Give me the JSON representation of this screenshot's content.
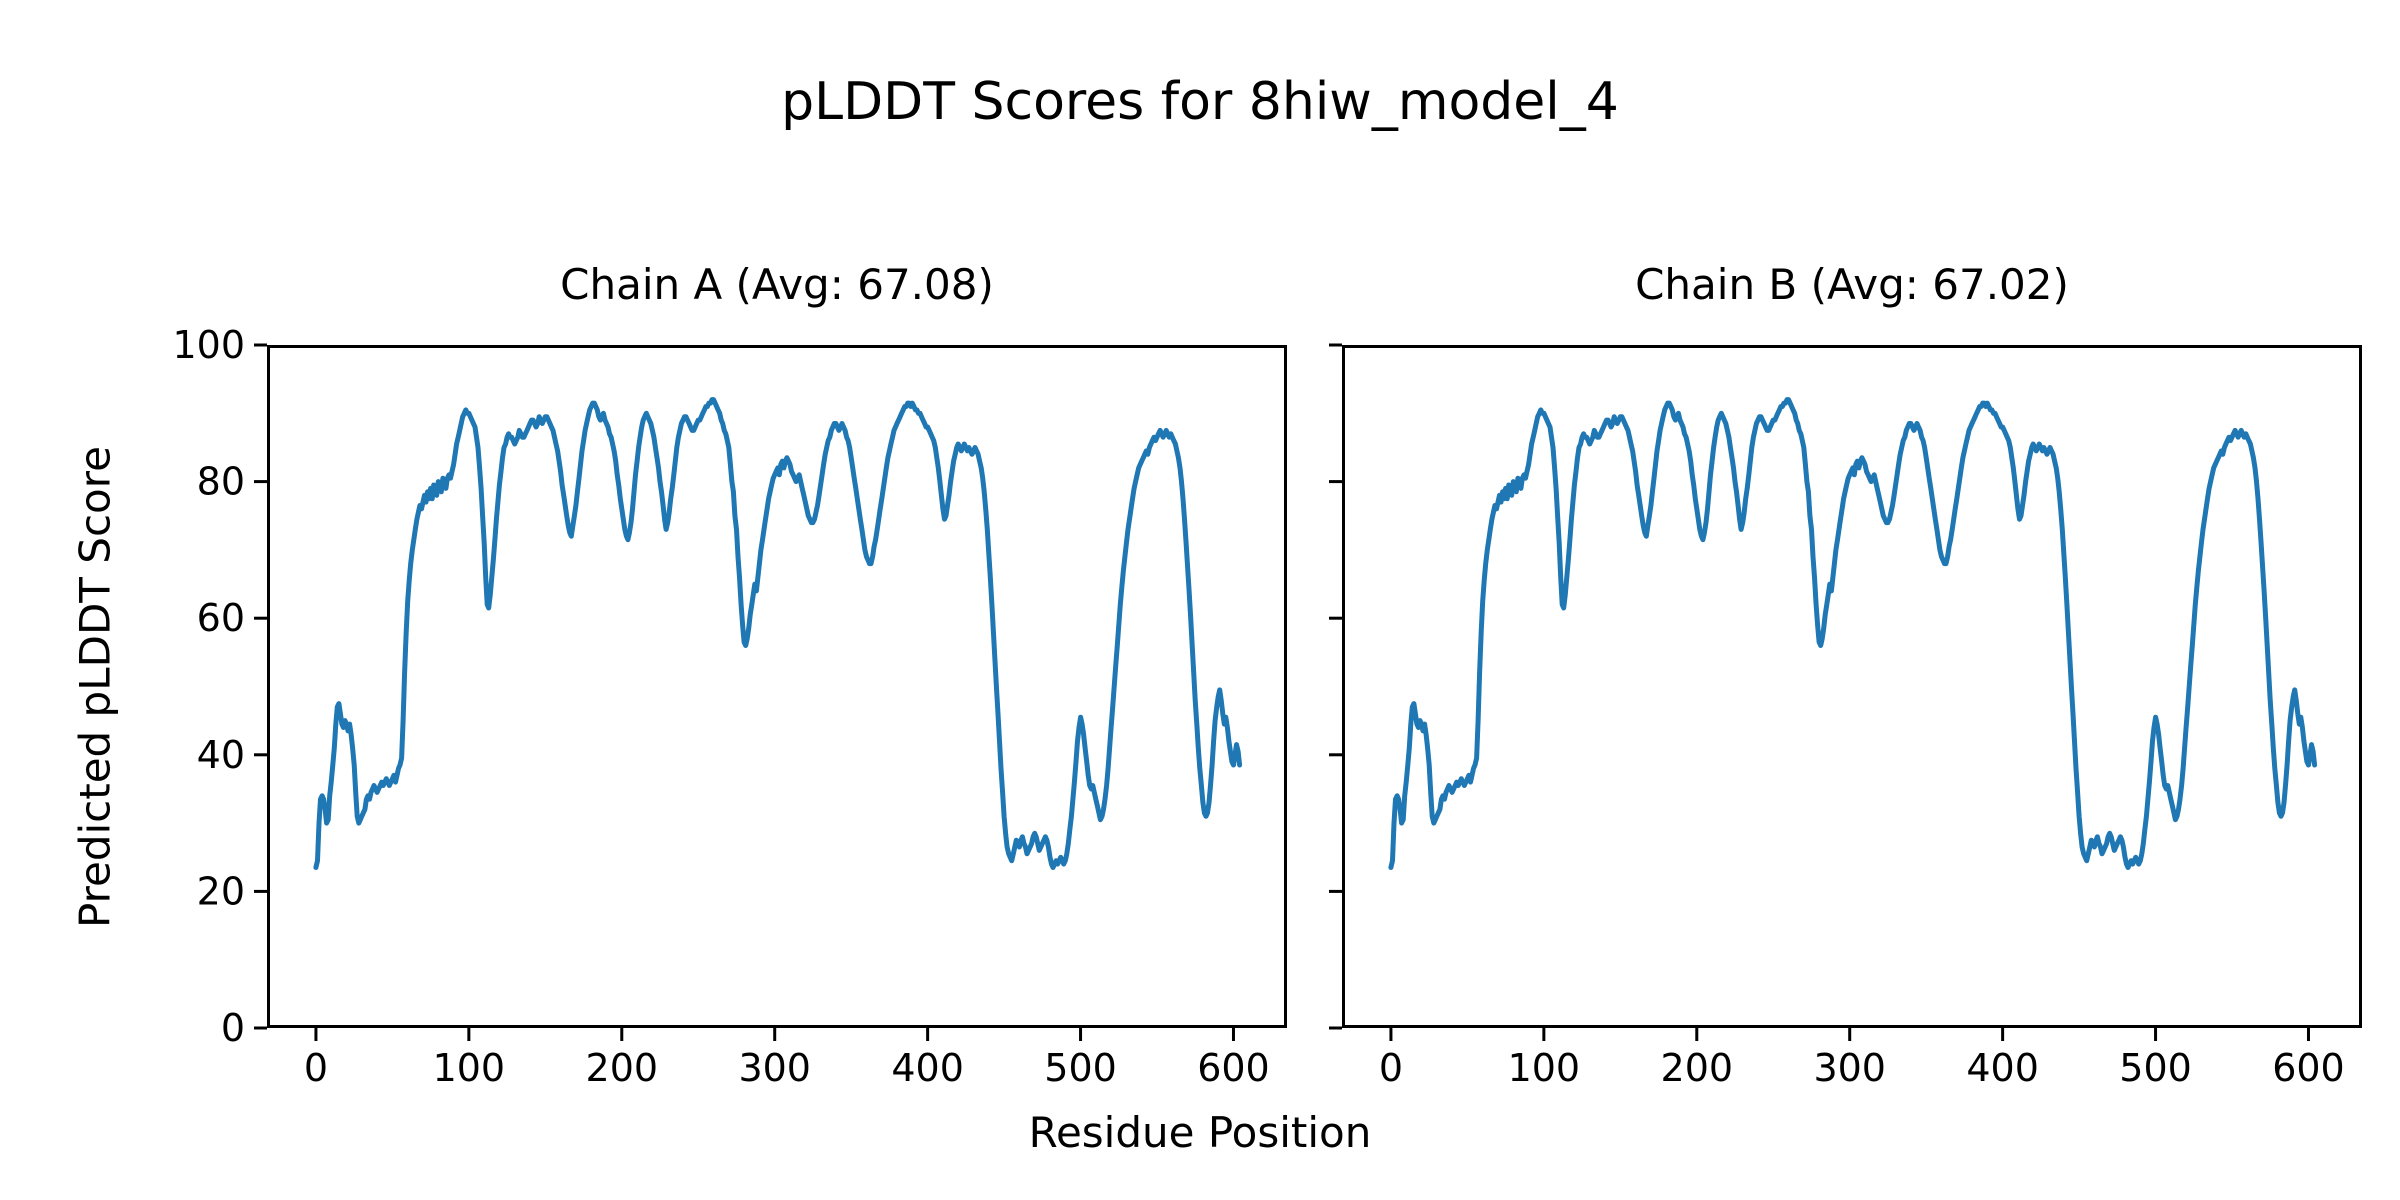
{
  "figure": {
    "suptitle": "pLDDT Scores for 8hiw_model_4",
    "background": "#ffffff",
    "text_color": "#000000",
    "line_color": "#1f77b4"
  },
  "axis": {
    "xlabel": "Residue Position",
    "ylabel": "Predicted pLDDT Score",
    "x_ticks": [
      0,
      100,
      200,
      300,
      400,
      500,
      600
    ],
    "y_ticks": [
      0,
      20,
      40,
      60,
      80,
      100
    ]
  },
  "chart_data": {
    "type": "line",
    "title": "pLDDT Scores for 8hiw_model_4",
    "xlabel": "Residue Position",
    "ylabel": "Predicted pLDDT Score",
    "grid": false,
    "legend_position": "none",
    "xlim": [
      -32,
      635
    ],
    "ylim": [
      0,
      100
    ],
    "x_ticks": [
      0,
      100,
      200,
      300,
      400,
      500,
      600
    ],
    "y_ticks": [
      0,
      20,
      40,
      60,
      80,
      100
    ],
    "x_start": 0,
    "x_step": 1,
    "subplots": [
      {
        "name": "Chain A",
        "title": "Chain A (Avg: 67.08)",
        "avg": 67.08,
        "y": [
          23.5,
          24.5,
          30,
          33.5,
          34,
          33.5,
          32,
          30,
          30.5,
          34,
          36,
          38.5,
          41,
          44.5,
          47,
          47.5,
          46,
          44.5,
          44,
          45,
          44.5,
          43.5,
          44.5,
          43,
          41,
          38.5,
          34.5,
          31,
          30,
          30.5,
          31,
          31.5,
          32,
          33.5,
          34,
          33.5,
          34.5,
          35,
          35.5,
          35,
          34.5,
          35,
          35.5,
          36,
          35.5,
          36,
          36.5,
          36,
          35.5,
          36,
          36.5,
          37,
          36,
          37,
          38,
          38.5,
          39.5,
          45,
          52,
          58,
          62.5,
          65.5,
          68,
          70,
          71.5,
          73,
          74.5,
          75.5,
          76.5,
          76,
          77,
          78,
          77,
          78.5,
          77.5,
          79,
          77.5,
          79.5,
          78.5,
          78,
          80,
          79,
          78.5,
          80.5,
          79.5,
          79,
          80.5,
          81,
          80.5,
          81.5,
          82.5,
          84,
          85.5,
          86.5,
          87.5,
          88.5,
          89.5,
          90,
          90.5,
          90,
          90,
          89.5,
          89,
          88.5,
          88,
          86.5,
          85,
          82,
          79,
          75,
          71,
          66,
          62,
          61.5,
          63.5,
          66,
          68.5,
          71.5,
          74.5,
          77,
          79.5,
          81.5,
          83.5,
          85,
          85.5,
          86.5,
          87,
          86.5,
          86.5,
          86,
          85.5,
          86,
          86.5,
          87.5,
          87,
          86.5,
          86.5,
          87,
          87.5,
          88,
          88.5,
          89,
          89,
          88.5,
          88,
          88.5,
          89.5,
          89,
          88.5,
          89,
          89.5,
          89.5,
          89,
          88.5,
          88,
          87.5,
          86.5,
          85.5,
          84.5,
          83,
          81.5,
          79.5,
          78,
          76.5,
          75,
          73.5,
          72.5,
          72,
          73.5,
          75,
          76.5,
          78.5,
          80.5,
          82.5,
          84.5,
          86,
          87.5,
          88.5,
          89.5,
          90.5,
          91,
          91.5,
          91.5,
          91,
          90.5,
          89.5,
          89,
          89.5,
          90,
          89,
          88.5,
          88,
          87,
          86.5,
          85.5,
          84.5,
          83,
          81,
          79.5,
          77.5,
          76,
          74.5,
          73,
          72,
          71.5,
          72.5,
          74,
          76,
          78.5,
          81,
          83,
          85,
          86.5,
          88,
          89,
          89.5,
          90,
          89.5,
          89,
          88.5,
          87.5,
          86.5,
          85,
          83.5,
          82,
          80,
          78.5,
          76.5,
          74.5,
          73,
          74,
          75.5,
          77.5,
          79,
          81,
          83,
          85,
          86.5,
          87.5,
          88.5,
          89,
          89.5,
          89.5,
          89,
          88.5,
          88,
          87.5,
          87.5,
          88,
          88.5,
          89,
          89,
          89.5,
          90,
          90.5,
          91,
          91,
          91.5,
          91.5,
          92,
          92,
          91.5,
          91,
          90.5,
          90,
          89,
          88.5,
          87.5,
          87,
          86,
          85,
          82.5,
          80,
          78.5,
          75,
          73,
          69,
          66,
          62,
          59,
          56.5,
          56,
          57,
          58.5,
          60.5,
          62,
          63.5,
          65,
          64,
          66,
          68,
          70,
          71.5,
          73,
          74.5,
          76,
          77.5,
          78.5,
          79.5,
          80.5,
          81,
          81.5,
          82,
          81,
          82.5,
          83,
          82,
          83,
          83.5,
          83,
          82.5,
          81.5,
          81,
          80.5,
          80,
          80.5,
          81,
          80,
          79,
          78,
          77,
          76,
          75,
          74.5,
          74,
          74,
          74.5,
          75.5,
          76.5,
          78,
          79.5,
          81,
          82.5,
          84,
          85,
          86,
          86.5,
          87.5,
          88,
          88.5,
          88.5,
          88,
          87.5,
          88,
          88.5,
          88,
          87.5,
          86.5,
          86,
          85,
          83.5,
          82,
          80.5,
          79,
          77.5,
          76,
          74.5,
          73,
          71.5,
          70,
          69,
          68.5,
          68,
          68,
          69,
          70.5,
          71.5,
          73,
          74.5,
          76,
          77.5,
          79,
          80.5,
          82,
          83.5,
          84.5,
          85.5,
          86.5,
          87.5,
          88,
          88.5,
          89,
          89.5,
          90,
          90.5,
          91,
          91,
          91.5,
          91.5,
          91,
          91.5,
          91,
          90.5,
          90.5,
          90,
          90,
          89.5,
          89,
          88.5,
          88,
          88,
          87.5,
          87,
          86.5,
          86,
          85,
          83.5,
          82,
          80,
          78,
          76,
          74.5,
          75,
          76.5,
          78,
          80,
          81.5,
          83,
          84,
          85,
          85.5,
          85,
          84.5,
          85,
          85.5,
          85,
          84.5,
          85,
          84.5,
          84,
          84.5,
          85,
          84.5,
          84,
          83,
          82,
          80.5,
          78.5,
          76,
          73,
          69.5,
          66,
          62,
          58,
          54,
          50,
          46,
          42,
          38,
          34.5,
          31,
          28.5,
          26.5,
          25.5,
          25,
          24.5,
          25.5,
          26.5,
          27.5,
          27,
          26.5,
          27.5,
          28,
          27,
          26.5,
          25.5,
          26,
          26.5,
          27,
          28,
          28.5,
          28,
          27,
          26,
          26.5,
          27,
          27.5,
          28,
          27.5,
          26.5,
          25,
          24,
          23.5,
          24,
          24.5,
          24,
          24.5,
          25,
          24.5,
          24,
          24.5,
          25.5,
          27,
          29,
          31,
          33.5,
          36,
          39,
          42,
          44,
          45.5,
          44.5,
          43,
          41,
          39,
          37,
          35.5,
          35,
          35.5,
          34.5,
          33.5,
          32.5,
          31.5,
          30.5,
          31,
          32,
          33.5,
          35.5,
          38,
          41,
          44,
          47,
          50,
          53,
          56,
          59,
          62,
          64.5,
          67,
          69,
          71,
          73,
          74.5,
          76,
          77.5,
          79,
          80,
          81,
          82,
          82.5,
          83,
          83.5,
          84,
          84.5,
          84,
          85,
          85.5,
          86,
          86.5,
          86,
          86.5,
          87,
          87.5,
          87,
          86.5,
          87,
          87.5,
          87,
          86.5,
          87,
          86.5,
          86,
          85.5,
          84.5,
          83.5,
          82,
          80,
          77.5,
          74.5,
          71,
          67.5,
          64,
          60,
          56,
          52,
          48,
          44.5,
          41,
          38,
          35.5,
          33,
          31.5,
          31,
          31.5,
          33,
          35.5,
          38.5,
          42,
          45,
          47,
          48.5,
          49.5,
          48,
          46,
          44.5,
          45.5,
          44,
          42,
          40.5,
          39,
          38.5,
          40,
          41.5,
          40.5,
          38.5
        ]
      },
      {
        "name": "Chain B",
        "title": "Chain B (Avg: 67.02)",
        "avg": 67.02,
        "y": [
          23.5,
          24.5,
          30,
          33.5,
          34,
          33.5,
          32,
          30,
          30.5,
          34,
          36,
          38.5,
          41,
          44.5,
          47,
          47.5,
          46,
          44.5,
          44,
          45,
          44.5,
          43.5,
          44.5,
          43,
          41,
          38.5,
          34.5,
          31,
          30,
          30.5,
          31,
          31.5,
          32,
          33.5,
          34,
          33.5,
          34.5,
          35,
          35.5,
          35,
          34.5,
          35,
          35.5,
          36,
          35.5,
          36,
          36.5,
          36,
          35.5,
          36,
          36.5,
          37,
          36,
          37,
          38,
          38.5,
          39.5,
          45,
          52,
          58,
          62.5,
          65.5,
          68,
          70,
          71.5,
          73,
          74.5,
          75.5,
          76.5,
          76,
          77,
          78,
          77,
          78.5,
          77.5,
          79,
          77.5,
          79.5,
          78.5,
          78,
          80,
          79,
          78.5,
          80.5,
          79.5,
          79,
          80.5,
          81,
          80.5,
          81.5,
          82.5,
          84,
          85.5,
          86.5,
          87.5,
          88.5,
          89.5,
          90,
          90.5,
          90,
          90,
          89.5,
          89,
          88.5,
          88,
          86.5,
          85,
          82,
          79,
          75,
          71,
          66,
          62,
          61.5,
          63.5,
          66,
          68.5,
          71.5,
          74.5,
          77,
          79.5,
          81.5,
          83.5,
          85,
          85.5,
          86.5,
          87,
          86.5,
          86.5,
          86,
          85.5,
          86,
          86.5,
          87.5,
          87,
          86.5,
          86.5,
          87,
          87.5,
          88,
          88.5,
          89,
          89,
          88.5,
          88,
          88.5,
          89.5,
          89,
          88.5,
          89,
          89.5,
          89.5,
          89,
          88.5,
          88,
          87.5,
          86.5,
          85.5,
          84.5,
          83,
          81.5,
          79.5,
          78,
          76.5,
          75,
          73.5,
          72.5,
          72,
          73.5,
          75,
          76.5,
          78.5,
          80.5,
          82.5,
          84.5,
          86,
          87.5,
          88.5,
          89.5,
          90.5,
          91,
          91.5,
          91.5,
          91,
          90.5,
          89.5,
          89,
          89.5,
          90,
          89,
          88.5,
          88,
          87,
          86.5,
          85.5,
          84.5,
          83,
          81,
          79.5,
          77.5,
          76,
          74.5,
          73,
          72,
          71.5,
          72.5,
          74,
          76,
          78.5,
          81,
          83,
          85,
          86.5,
          88,
          89,
          89.5,
          90,
          89.5,
          89,
          88.5,
          87.5,
          86.5,
          85,
          83.5,
          82,
          80,
          78.5,
          76.5,
          74.5,
          73,
          74,
          75.5,
          77.5,
          79,
          81,
          83,
          85,
          86.5,
          87.5,
          88.5,
          89,
          89.5,
          89.5,
          89,
          88.5,
          88,
          87.5,
          87.5,
          88,
          88.5,
          89,
          89,
          89.5,
          90,
          90.5,
          91,
          91,
          91.5,
          91.5,
          92,
          92,
          91.5,
          91,
          90.5,
          90,
          89,
          88.5,
          87.5,
          87,
          86,
          85,
          82.5,
          80,
          78.5,
          75,
          73,
          69,
          66,
          62,
          59,
          56.5,
          56,
          57,
          58.5,
          60.5,
          62,
          63.5,
          65,
          64,
          66,
          68,
          70,
          71.5,
          73,
          74.5,
          76,
          77.5,
          78.5,
          79.5,
          80.5,
          81,
          81.5,
          82,
          81,
          82.5,
          83,
          82,
          83,
          83.5,
          83,
          82.5,
          81.5,
          81,
          80.5,
          80,
          80.5,
          81,
          80,
          79,
          78,
          77,
          76,
          75,
          74.5,
          74,
          74,
          74.5,
          75.5,
          76.5,
          78,
          79.5,
          81,
          82.5,
          84,
          85,
          86,
          86.5,
          87.5,
          88,
          88.5,
          88.5,
          88,
          87.5,
          88,
          88.5,
          88,
          87.5,
          86.5,
          86,
          85,
          83.5,
          82,
          80.5,
          79,
          77.5,
          76,
          74.5,
          73,
          71.5,
          70,
          69,
          68.5,
          68,
          68,
          69,
          70.5,
          71.5,
          73,
          74.5,
          76,
          77.5,
          79,
          80.5,
          82,
          83.5,
          84.5,
          85.5,
          86.5,
          87.5,
          88,
          88.5,
          89,
          89.5,
          90,
          90.5,
          91,
          91,
          91.5,
          91.5,
          91,
          91.5,
          91,
          90.5,
          90.5,
          90,
          90,
          89.5,
          89,
          88.5,
          88,
          88,
          87.5,
          87,
          86.5,
          86,
          85,
          83.5,
          82,
          80,
          78,
          76,
          74.5,
          75,
          76.5,
          78,
          80,
          81.5,
          83,
          84,
          85,
          85.5,
          85,
          84.5,
          85,
          85.5,
          85,
          84.5,
          85,
          84.5,
          84,
          84.5,
          85,
          84.5,
          84,
          83,
          82,
          80.5,
          78.5,
          76,
          73,
          69.5,
          66,
          62,
          58,
          54,
          50,
          46,
          42,
          38,
          34.5,
          31,
          28.5,
          26.5,
          25.5,
          25,
          24.5,
          25.5,
          26.5,
          27.5,
          27,
          26.5,
          27.5,
          28,
          27,
          26.5,
          25.5,
          26,
          26.5,
          27,
          28,
          28.5,
          28,
          27,
          26,
          26.5,
          27,
          27.5,
          28,
          27.5,
          26.5,
          25,
          24,
          23.5,
          24,
          24.5,
          24,
          24.5,
          25,
          24.5,
          24,
          24.5,
          25.5,
          27,
          29,
          31,
          33.5,
          36,
          39,
          42,
          44,
          45.5,
          44.5,
          43,
          41,
          39,
          37,
          35.5,
          35,
          35.5,
          34.5,
          33.5,
          32.5,
          31.5,
          30.5,
          31,
          32,
          33.5,
          35.5,
          38,
          41,
          44,
          47,
          50,
          53,
          56,
          59,
          62,
          64.5,
          67,
          69,
          71,
          73,
          74.5,
          76,
          77.5,
          79,
          80,
          81,
          82,
          82.5,
          83,
          83.5,
          84,
          84.5,
          84,
          85,
          85.5,
          86,
          86.5,
          86,
          86.5,
          87,
          87.5,
          87,
          86.5,
          87,
          87.5,
          87,
          86.5,
          87,
          86.5,
          86,
          85.5,
          84.5,
          83.5,
          82,
          80,
          77.5,
          74.5,
          71,
          67.5,
          64,
          60,
          56,
          52,
          48,
          44.5,
          41,
          38,
          35.5,
          33,
          31.5,
          31,
          31.5,
          33,
          35.5,
          38.5,
          42,
          45,
          47,
          48.5,
          49.5,
          48,
          46,
          44.5,
          45.5,
          44,
          42,
          40.5,
          39,
          38.5,
          40,
          41.5,
          40.5,
          38.5
        ]
      }
    ]
  }
}
